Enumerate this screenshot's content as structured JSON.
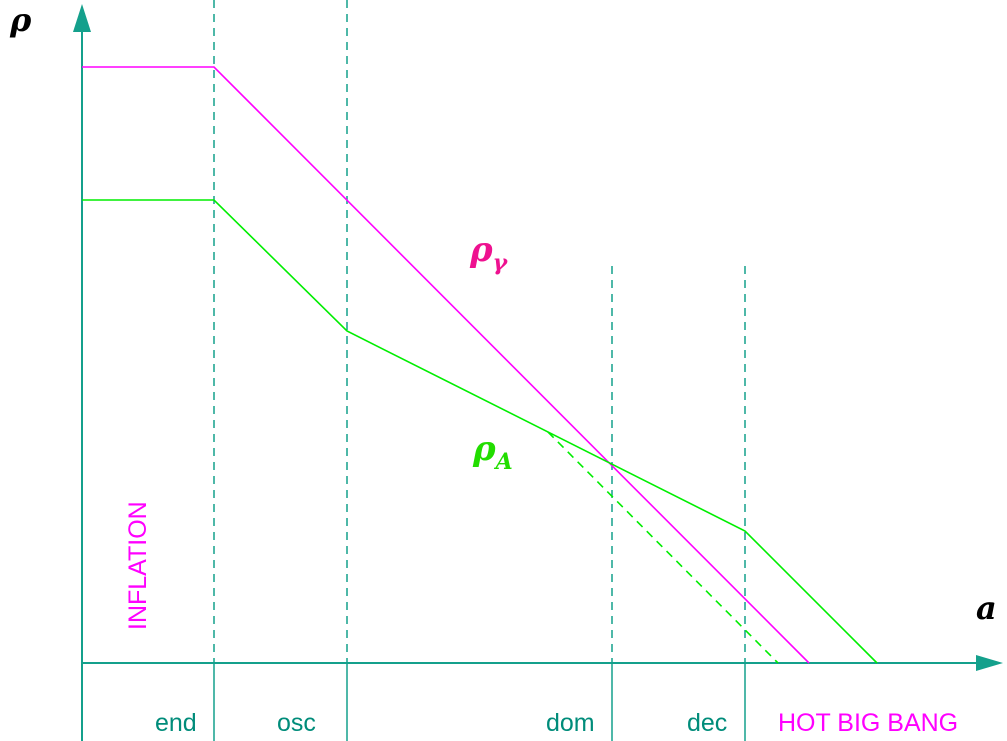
{
  "colors": {
    "axis": "#14a08c",
    "radiation": "#ff00ff",
    "axion": "#00ee00",
    "radiation_label": "#ee1190",
    "axion_label": "#22dd00",
    "region_label": "#ff00ff",
    "epoch_label": "#008c7a",
    "text_dark": "#000000"
  },
  "axes": {
    "y_label": "ρ",
    "x_label": "a"
  },
  "curves": {
    "radiation": {
      "symbol": "ρ",
      "subscript": "γ"
    },
    "axion": {
      "symbol": "ρ",
      "subscript": "A"
    }
  },
  "epochs": {
    "end": "end",
    "osc": "osc",
    "dom": "dom",
    "dec": "dec"
  },
  "regions": {
    "inflation": "INFLATION",
    "hot_big_bang": "HOT BIG BANG"
  }
}
